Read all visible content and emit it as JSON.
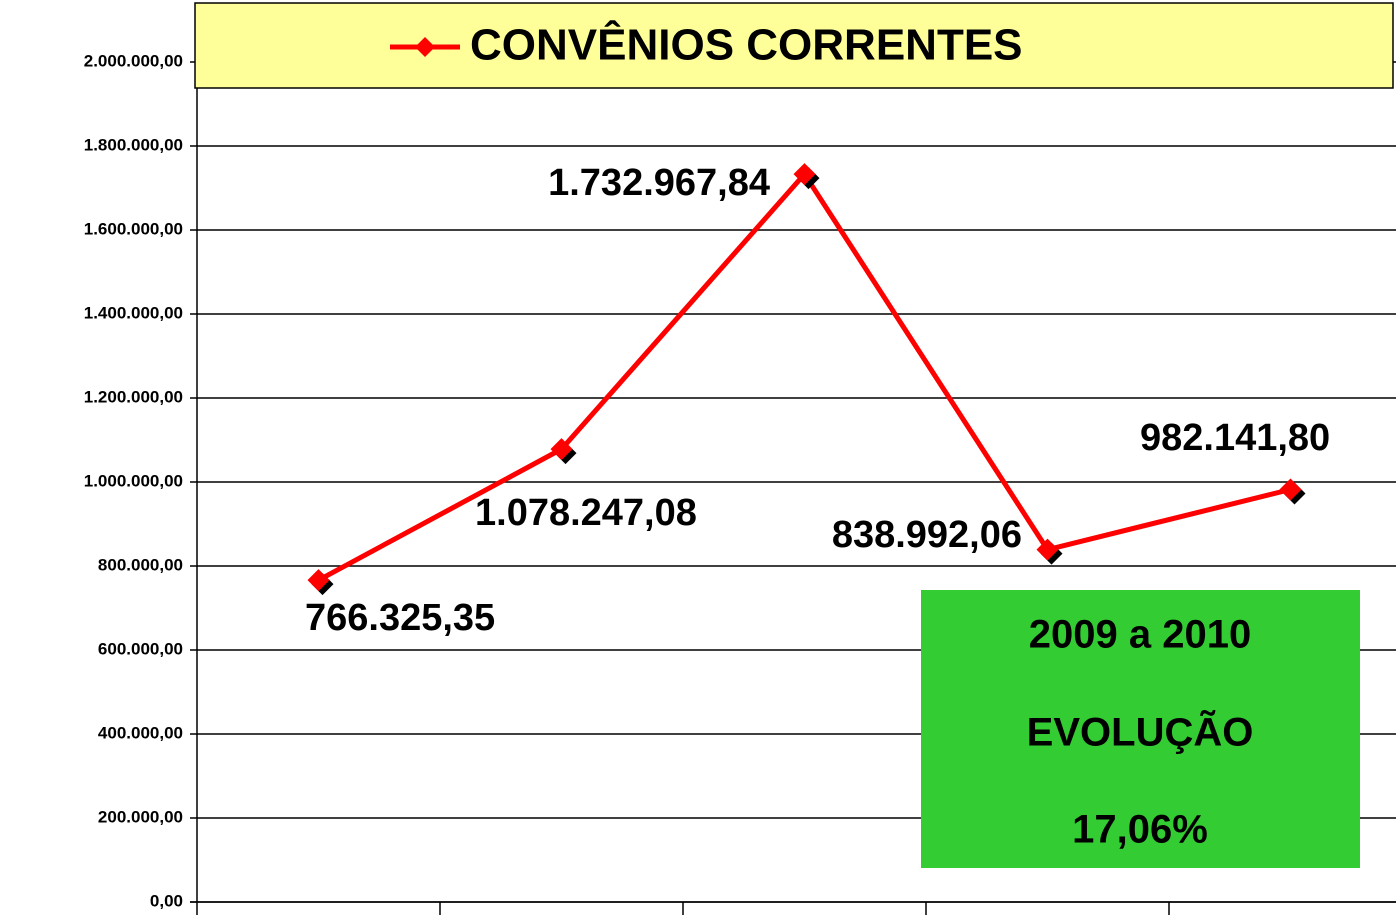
{
  "chart_data": {
    "type": "line",
    "categories": [
      null,
      null,
      null,
      null,
      null
    ],
    "series": [
      {
        "name": "CONVÊNIOS CORRENTES",
        "color": "#ff0000",
        "values": [
          766325.35,
          1078247.08,
          1732967.84,
          838992.06,
          982141.8
        ],
        "value_labels": [
          "766.325,35",
          "1.078.247,08",
          "1.732.967,84",
          "838.992,06",
          "982.141,80"
        ]
      }
    ],
    "ylim": [
      0,
      2000000
    ],
    "yticks": [
      {
        "value": 0,
        "label": "0,00"
      },
      {
        "value": 200000,
        "label": "200.000,00"
      },
      {
        "value": 400000,
        "label": "400.000,00"
      },
      {
        "value": 600000,
        "label": "600.000,00"
      },
      {
        "value": 800000,
        "label": "800.000,00"
      },
      {
        "value": 1000000,
        "label": "1.000.000,00"
      },
      {
        "value": 1200000,
        "label": "1.200.000,00"
      },
      {
        "value": 1400000,
        "label": "1.400.000,00"
      },
      {
        "value": 1600000,
        "label": "1.600.000,00"
      },
      {
        "value": 1800000,
        "label": "1.800.000,00"
      },
      {
        "value": 2000000,
        "label": "2.000.000,00"
      }
    ],
    "grid": true,
    "legend": "top",
    "annotation": [
      "2009 a 2010",
      "EVOLUÇÃO",
      "17,06%"
    ]
  }
}
